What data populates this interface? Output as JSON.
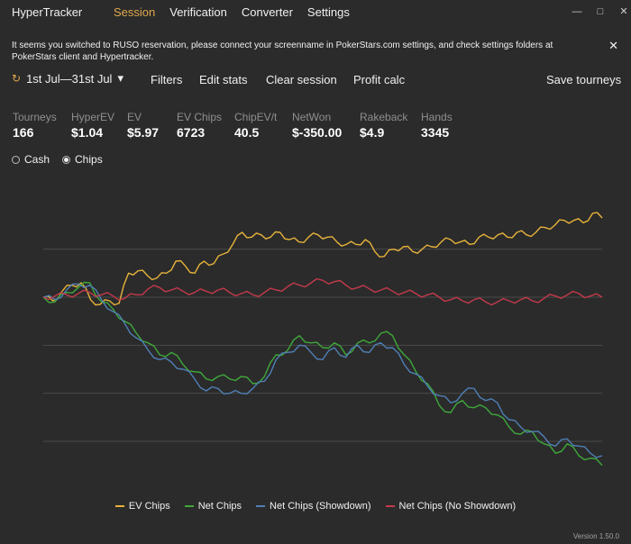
{
  "app": {
    "title": "HyperTracker"
  },
  "tabs": [
    {
      "label": "Session",
      "active": true
    },
    {
      "label": "Verification",
      "active": false
    },
    {
      "label": "Converter",
      "active": false
    },
    {
      "label": "Settings",
      "active": false
    }
  ],
  "window_controls": {
    "minimize": "—",
    "maximize": "□",
    "close": "✕"
  },
  "notice": {
    "text": "It seems you switched to RUSO reservation, please connect your screenname in PokerStars.com settings, and check settings folders at PokerStars client and Hypertracker.",
    "close": "✕"
  },
  "toolbar": {
    "date_range": "1st Jul—31st Jul",
    "date_icon": "↻",
    "chevron": "▾",
    "filters": "Filters",
    "edit_stats": "Edit stats",
    "clear_session": "Clear session",
    "profit_calc": "Profit calc",
    "save_tourneys": "Save tourneys"
  },
  "stats": [
    {
      "label": "Tourneys",
      "value": "166"
    },
    {
      "label": "HyperEV",
      "value": "$1.04"
    },
    {
      "label": "EV",
      "value": "$5.97"
    },
    {
      "label": "EV Chips",
      "value": "6723"
    },
    {
      "label": "ChipEV/t",
      "value": "40.5"
    },
    {
      "label": "NetWon",
      "value": "$-350.00"
    },
    {
      "label": "Rakeback",
      "value": "$4.9"
    },
    {
      "label": "Hands",
      "value": "3345"
    }
  ],
  "mode": {
    "cash_label": "Cash",
    "chips_label": "Chips",
    "selected": "Chips"
  },
  "chart_data": {
    "type": "line",
    "grid": true,
    "series": [
      {
        "name": "EV Chips",
        "color": "#e6b23a",
        "values": [
          0,
          -150,
          250,
          500,
          600,
          -100,
          -300,
          -150,
          -250,
          1000,
          1100,
          900,
          800,
          1000,
          1500,
          1300,
          1000,
          1500,
          1400,
          1800,
          2200,
          2700,
          2500,
          2600,
          2500,
          2700,
          2400,
          2300,
          2500,
          2600,
          2500,
          2300,
          2200,
          2200,
          2400,
          1900,
          1700,
          2000,
          2100,
          1900,
          2000,
          2100,
          2300,
          2400,
          2300,
          2200,
          2500,
          2500,
          2600,
          2500,
          2700,
          2600,
          2700,
          2900,
          3000,
          3200,
          3200,
          3100,
          3500,
          3300
        ]
      },
      {
        "name": "Net Chips",
        "color": "#3fa83a",
        "values": [
          0,
          -200,
          200,
          400,
          600,
          -200,
          -500,
          -1000,
          -1500,
          -1900,
          -2400,
          -2300,
          -2800,
          -3100,
          -3400,
          -3300,
          -3400,
          -3300,
          -3600,
          -3300,
          -2400,
          -2200,
          -1600,
          -1900,
          -2100,
          -1900,
          -2400,
          -1900,
          -1900,
          -1500,
          -1600,
          -2400,
          -3100,
          -3600,
          -4500,
          -4800,
          -4300,
          -4600,
          -4600,
          -4900,
          -5400,
          -5700,
          -5600,
          -6100,
          -6500,
          -6100,
          -6600,
          -6700,
          -7000
        ]
      },
      {
        "name": "Net Chips (Showdown)",
        "color": "#4f7fb5",
        "values": [
          0,
          -100,
          300,
          550,
          500,
          -100,
          -600,
          -1100,
          -1700,
          -2200,
          -2600,
          -2700,
          -3000,
          -3400,
          -3900,
          -3800,
          -4000,
          -4000,
          -3800,
          -3500,
          -2600,
          -2300,
          -2000,
          -2300,
          -2600,
          -2100,
          -2500,
          -2000,
          -2300,
          -1900,
          -2100,
          -2800,
          -3200,
          -3700,
          -4100,
          -4400,
          -4000,
          -3800,
          -4300,
          -4400,
          -5100,
          -5400,
          -5600,
          -5800,
          -6200,
          -5900,
          -6200,
          -6500,
          -6600
        ]
      },
      {
        "name": "Net Chips (No Showdown)",
        "color": "#c43a4c",
        "values": [
          0,
          50,
          100,
          150,
          200,
          100,
          50,
          -50,
          100,
          350,
          400,
          300,
          250,
          200,
          250,
          300,
          200,
          150,
          100,
          200,
          300,
          450,
          500,
          600,
          700,
          650,
          500,
          400,
          350,
          300,
          250,
          200,
          150,
          100,
          0,
          -100,
          -150,
          -100,
          -200,
          -200,
          -150,
          -100,
          -150,
          -50,
          50,
          100,
          150,
          50,
          0
        ]
      }
    ]
  },
  "version": "Version 1.50.0"
}
